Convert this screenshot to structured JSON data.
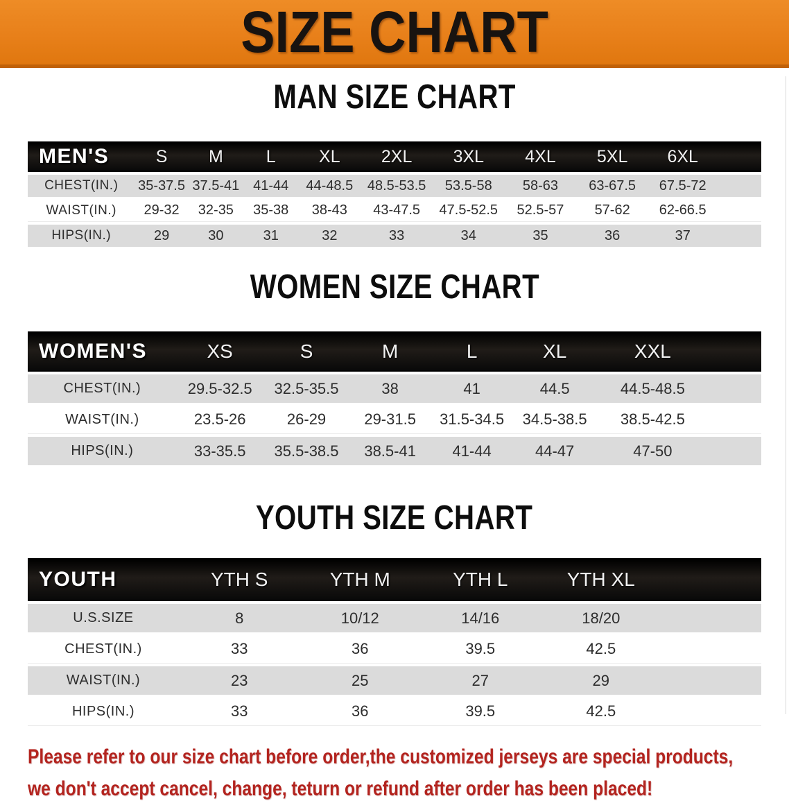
{
  "banner": {
    "title": "SIZE CHART"
  },
  "colors": {
    "banner_bg": "#E8801A",
    "banner_edge": "#C06108",
    "header_bar_bg": "#141414",
    "row_gray": "#DBDBDB",
    "row_white": "#FFFFFF",
    "disclaimer_red": "#B3241F"
  },
  "sections": [
    {
      "heading": "MAN SIZE CHART",
      "corner_label": "MEN'S",
      "sizes": [
        "S",
        "M",
        "L",
        "XL",
        "2XL",
        "3XL",
        "4XL",
        "5XL",
        "6XL"
      ],
      "rows": [
        {
          "label": "CHEST(IN.)",
          "values": [
            "35-37.5",
            "37.5-41",
            "41-44",
            "44-48.5",
            "48.5-53.5",
            "53.5-58",
            "58-63",
            "63-67.5",
            "67.5-72"
          ]
        },
        {
          "label": "WAIST(IN.)",
          "values": [
            "29-32",
            "32-35",
            "35-38",
            "38-43",
            "43-47.5",
            "47.5-52.5",
            "52.5-57",
            "57-62",
            "62-66.5"
          ]
        },
        {
          "label": "HIPS(IN.)",
          "values": [
            "29",
            "30",
            "31",
            "32",
            "33",
            "34",
            "35",
            "36",
            "37"
          ]
        }
      ]
    },
    {
      "heading": "WOMEN SIZE CHART",
      "corner_label": "WOMEN'S",
      "sizes": [
        "XS",
        "S",
        "M",
        "L",
        "XL",
        "XXL"
      ],
      "rows": [
        {
          "label": "CHEST(IN.)",
          "values": [
            "29.5-32.5",
            "32.5-35.5",
            "38",
            "41",
            "44.5",
            "44.5-48.5"
          ]
        },
        {
          "label": "WAIST(IN.)",
          "values": [
            "23.5-26",
            "26-29",
            "29-31.5",
            "31.5-34.5",
            "34.5-38.5",
            "38.5-42.5"
          ]
        },
        {
          "label": "HIPS(IN.)",
          "values": [
            "33-35.5",
            "35.5-38.5",
            "38.5-41",
            "41-44",
            "44-47",
            "47-50"
          ]
        }
      ]
    },
    {
      "heading": "YOUTH SIZE CHART",
      "corner_label": "YOUTH",
      "sizes": [
        "YTH S",
        "YTH M",
        "YTH L",
        "YTH XL"
      ],
      "rows": [
        {
          "label": "U.S.SIZE",
          "values": [
            "8",
            "10/12",
            "14/16",
            "18/20"
          ]
        },
        {
          "label": "CHEST(IN.)",
          "values": [
            "33",
            "36",
            "39.5",
            "42.5"
          ]
        },
        {
          "label": "WAIST(IN.)",
          "values": [
            "23",
            "25",
            "27",
            "29"
          ]
        },
        {
          "label": "HIPS(IN.)",
          "values": [
            "33",
            "36",
            "39.5",
            "42.5"
          ]
        }
      ]
    }
  ],
  "disclaimer": {
    "line1": "Please refer to our size chart before order,the customized jerseys are special products,",
    "line2": "we don't accept cancel, change, teturn or refund after order has been placed!"
  }
}
